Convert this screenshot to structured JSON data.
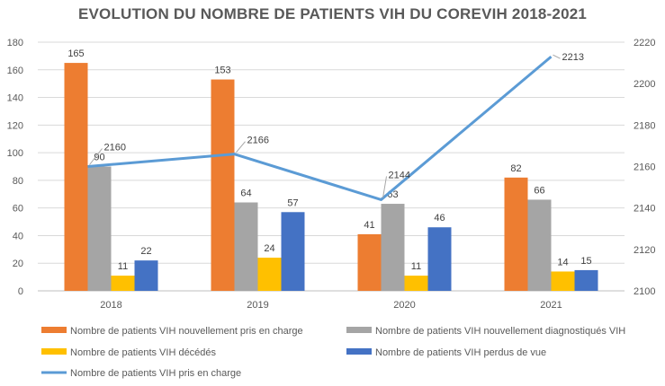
{
  "chart_data": {
    "type": "bar",
    "title": "EVOLUTION DU NOMBRE DE PATIENTS VIH DU COREVIH 2018-2021",
    "categories": [
      "2018",
      "2019",
      "2020",
      "2021"
    ],
    "ylim": [
      0,
      180
    ],
    "y_ticks": [
      "0",
      "20",
      "40",
      "60",
      "80",
      "100",
      "120",
      "140",
      "160",
      "180"
    ],
    "y2lim": [
      2100,
      2220
    ],
    "y2_ticks": [
      "2100",
      "2120",
      "2140",
      "2160",
      "2180",
      "2200",
      "2220"
    ],
    "grid": true,
    "legend_position": "bottom",
    "series": [
      {
        "name": "Nombre de patients VIH nouvellement pris en charge",
        "kind": "bar",
        "axis": "left",
        "color": "#ED7D31",
        "values": [
          165,
          153,
          41,
          82
        ]
      },
      {
        "name": "Nombre de patients VIH nouvellement diagnostiqués VIH",
        "kind": "bar",
        "axis": "left",
        "color": "#A5A5A5",
        "values": [
          90,
          64,
          63,
          66
        ]
      },
      {
        "name": "Nombre de patients VIH décédés",
        "kind": "bar",
        "axis": "left",
        "color": "#FFC000",
        "values": [
          11,
          24,
          11,
          14
        ]
      },
      {
        "name": "Nombre de patients VIH perdus de vue",
        "kind": "bar",
        "axis": "left",
        "color": "#4472C4",
        "values": [
          22,
          57,
          46,
          15
        ]
      },
      {
        "name": "Nombre de patients VIH pris en charge",
        "kind": "line",
        "axis": "right",
        "color": "#5B9BD5",
        "values": [
          2160,
          2166,
          2144,
          2213
        ]
      }
    ]
  }
}
